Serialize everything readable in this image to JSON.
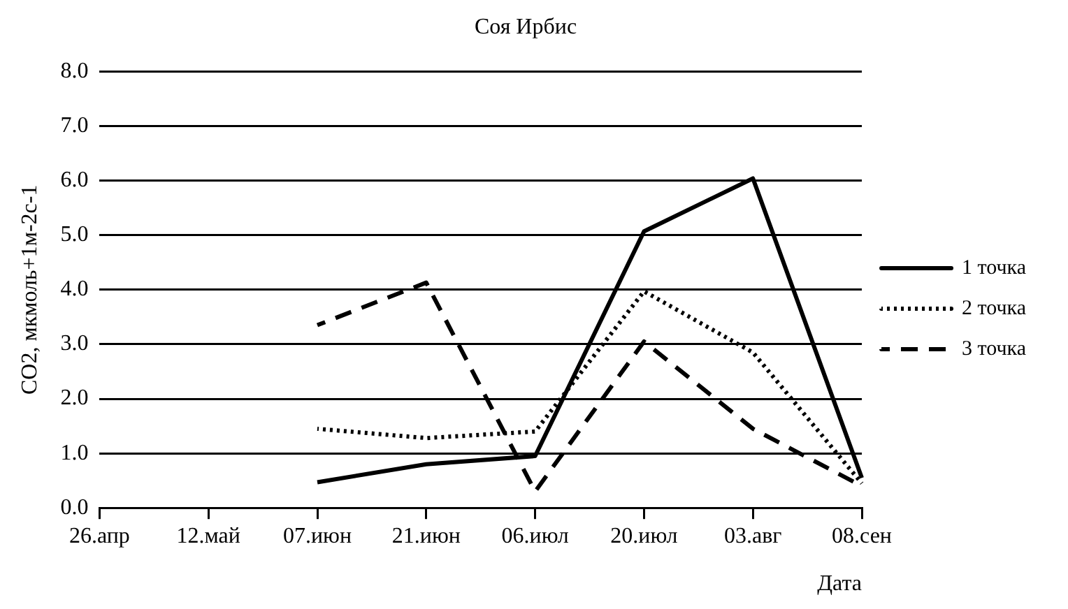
{
  "chart_data": {
    "type": "line",
    "title": "Соя Ирбис",
    "xlabel": "Дата",
    "ylabel": "CO2, мкмоль+1м-2с-1",
    "categories": [
      "26.апр",
      "12.май",
      "07.июн",
      "21.июн",
      "06.июл",
      "20.июл",
      "03.авг",
      "08.сен"
    ],
    "series": [
      {
        "name": "1 точка",
        "color": "#000000",
        "line_style": "solid",
        "values": [
          null,
          null,
          0.47,
          0.8,
          0.95,
          5.07,
          6.04,
          0.55
        ]
      },
      {
        "name": "2 точка",
        "color": "#000000",
        "line_style": "dotted",
        "values": [
          null,
          null,
          1.45,
          1.28,
          1.4,
          3.97,
          2.85,
          0.45
        ]
      },
      {
        "name": "3 точка",
        "color": "#000000",
        "line_style": "dashed",
        "values": [
          null,
          null,
          3.35,
          4.13,
          0.3,
          3.05,
          1.45,
          0.4
        ]
      }
    ],
    "ylim": [
      0,
      8
    ],
    "yticks": [
      {
        "value": 0,
        "label": "0.0"
      },
      {
        "value": 1,
        "label": "1.0"
      },
      {
        "value": 2,
        "label": "2.0"
      },
      {
        "value": 3,
        "label": "3.0"
      },
      {
        "value": 4,
        "label": "4.0"
      },
      {
        "value": 5,
        "label": "5.0"
      },
      {
        "value": 6,
        "label": "6.0"
      },
      {
        "value": 7,
        "label": "7.0"
      },
      {
        "value": 8,
        "label": "8.0"
      }
    ],
    "grid": "y",
    "legend": "right",
    "marker": "none"
  }
}
